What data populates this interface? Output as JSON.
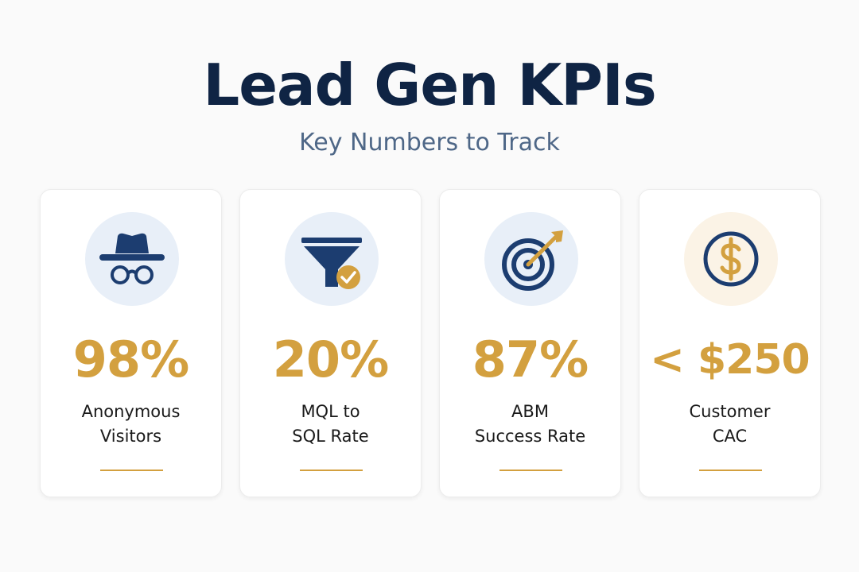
{
  "header": {
    "title": "Lead Gen KPIs",
    "subtitle": "Key Numbers to Track"
  },
  "colors": {
    "navy": "#0f2444",
    "gold": "#d3a03f",
    "icon_bg_blue": "#e8eff8",
    "icon_bg_cream": "#fbf3e6"
  },
  "cards": [
    {
      "icon": "incognito-icon",
      "value": "98%",
      "label_line1": "Anonymous",
      "label_line2": "Visitors"
    },
    {
      "icon": "funnel-check-icon",
      "value": "20%",
      "label_line1": "MQL to",
      "label_line2": "SQL Rate"
    },
    {
      "icon": "target-arrow-icon",
      "value": "87%",
      "label_line1": "ABM",
      "label_line2": "Success Rate"
    },
    {
      "icon": "dollar-coin-icon",
      "value": "< $250",
      "label_line1": "Customer",
      "label_line2": "CAC"
    }
  ]
}
